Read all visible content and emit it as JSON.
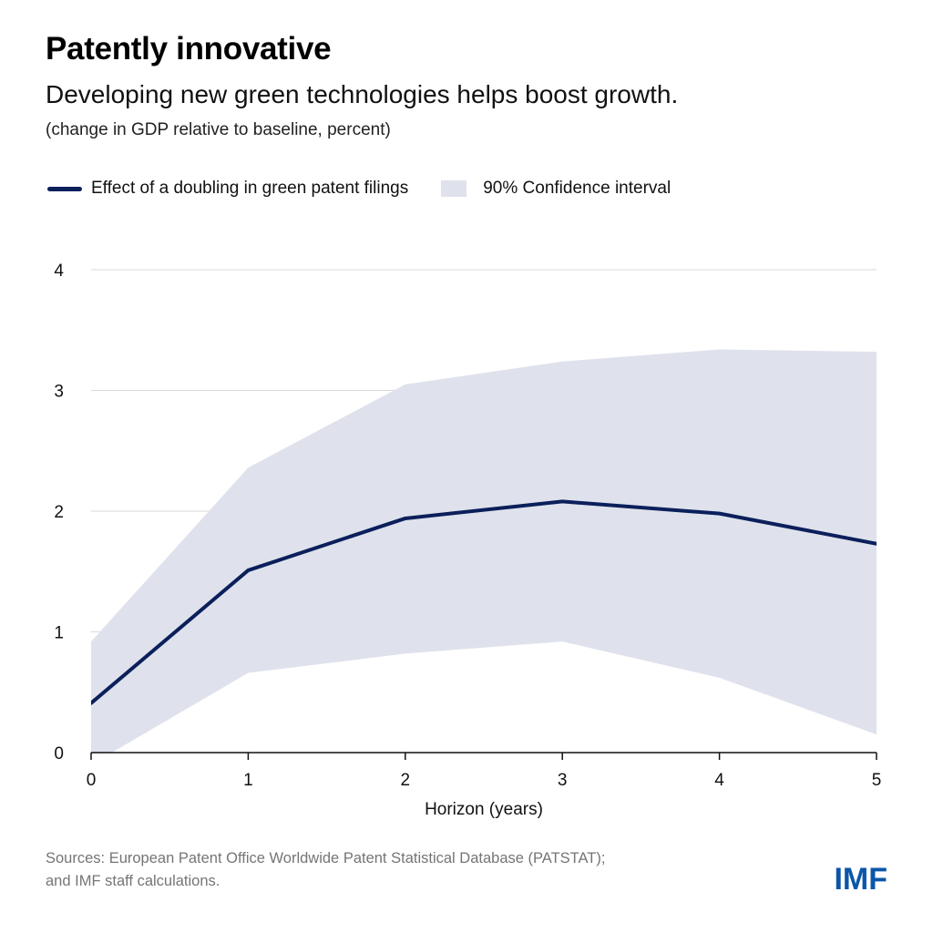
{
  "header": {
    "title": "Patently innovative",
    "subtitle": "Developing new green technologies helps boost growth.",
    "units": "(change in GDP relative to baseline, percent)"
  },
  "legend": {
    "line_label": "Effect of a doubling in green patent filings",
    "band_label": "90% Confidence interval"
  },
  "footer": {
    "source_line1": "Sources: European Patent Office Worldwide Patent Statistical Database (PATSTAT);",
    "source_line2": "and IMF staff calculations.",
    "logo": "IMF"
  },
  "colors": {
    "line": "#0b1f5b",
    "band": "#dfe2ec",
    "grid": "#d9d9d9",
    "logo": "#0b56a8"
  },
  "chart_data": {
    "type": "line",
    "xlabel": "Horizon (years)",
    "ylabel": "",
    "x": [
      0,
      1,
      2,
      3,
      4,
      5
    ],
    "xlim": [
      0,
      5
    ],
    "ylim": [
      0,
      4
    ],
    "yticks": [
      0,
      1,
      2,
      3,
      4
    ],
    "xticks": [
      0,
      1,
      2,
      3,
      4,
      5
    ],
    "grid": true,
    "legend_position": "top-left",
    "series": [
      {
        "name": "Effect of a doubling in green patent filings",
        "values": [
          0.41,
          1.51,
          1.94,
          2.08,
          1.98,
          1.73
        ]
      }
    ],
    "band": {
      "name": "90% Confidence interval",
      "upper": [
        0.92,
        2.36,
        3.05,
        3.24,
        3.34,
        3.32
      ],
      "lower": [
        -0.1,
        0.66,
        0.82,
        0.92,
        0.62,
        0.15
      ]
    }
  }
}
